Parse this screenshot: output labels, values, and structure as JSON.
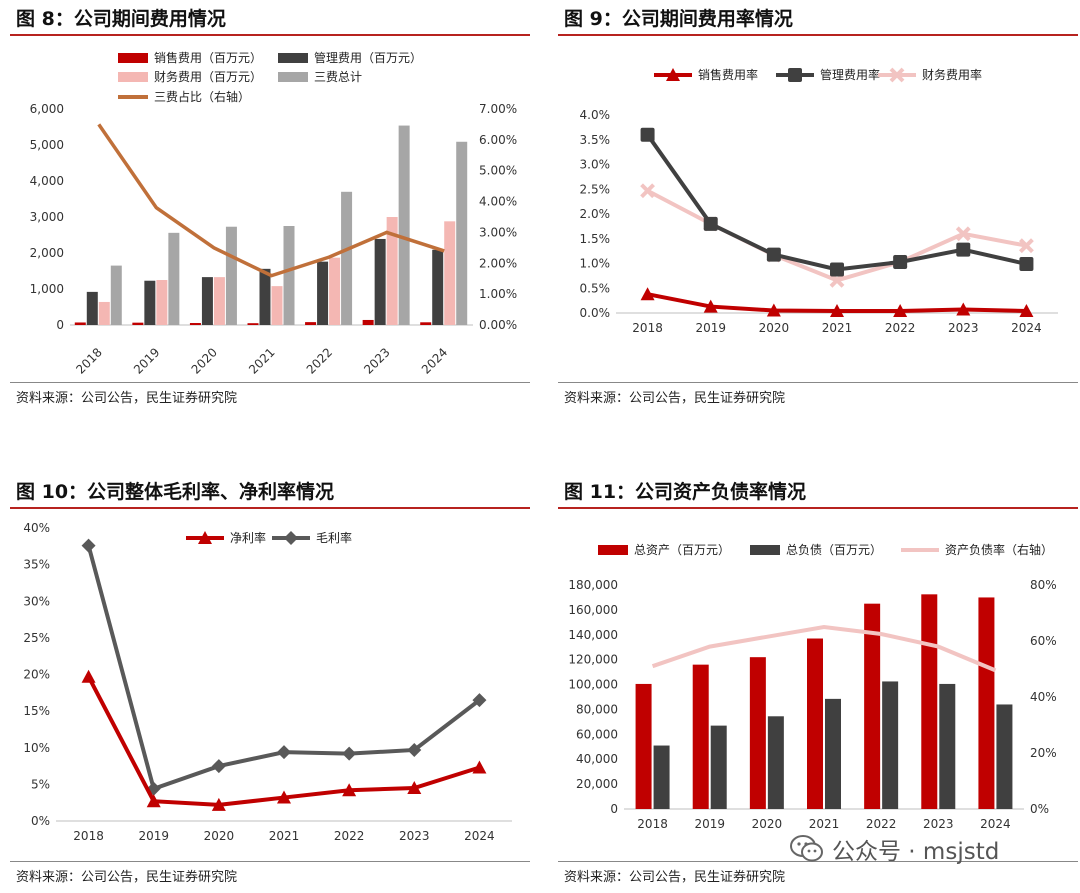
{
  "source_text": "资料来源：公司公告，民生证券研究院",
  "watermark": {
    "text": "公众号 · msjstd",
    "icon": "wechat-icon"
  },
  "colors": {
    "dark_red": "#c00000",
    "dark_grey": "#404040",
    "pink": "#f4b7b3",
    "light_grey": "#a6a6a6",
    "orange": "#c0703a",
    "light_pink": "#f2c4c2",
    "gray_line": "#595959",
    "title_rule": "#b7231f"
  },
  "chart_data": [
    {
      "id": "fig8",
      "title": "图 8：公司期间费用情况",
      "type": "bar",
      "categories": [
        "2018",
        "2019",
        "2020",
        "2021",
        "2022",
        "2023",
        "2024"
      ],
      "legend_position": "top",
      "series": [
        {
          "name": "销售费用（百万元）",
          "type": "bar",
          "axis": "left",
          "values": [
            70,
            65,
            55,
            50,
            80,
            140,
            75
          ]
        },
        {
          "name": "管理费用（百万元）",
          "type": "bar",
          "axis": "left",
          "values": [
            920,
            1230,
            1330,
            1560,
            1760,
            2390,
            2090
          ]
        },
        {
          "name": "财务费用（百万元）",
          "type": "bar",
          "axis": "left",
          "values": [
            640,
            1250,
            1330,
            1080,
            1870,
            3000,
            2880
          ]
        },
        {
          "name": "三费总计",
          "type": "bar",
          "axis": "left",
          "values": [
            1650,
            2560,
            2730,
            2750,
            3700,
            5540,
            5090
          ]
        },
        {
          "name": "三费占比（右轴）",
          "type": "line",
          "axis": "right",
          "values": [
            6.5,
            3.8,
            2.5,
            1.6,
            2.2,
            3.0,
            2.4
          ]
        }
      ],
      "ylim": [
        0,
        6000
      ],
      "y2lim": [
        0,
        7
      ],
      "ytick_labels": [
        "0",
        "1,000",
        "2,000",
        "3,000",
        "4,000",
        "5,000",
        "6,000"
      ],
      "y2tick_labels": [
        "0.00%",
        "1.00%",
        "2.00%",
        "3.00%",
        "4.00%",
        "5.00%",
        "6.00%",
        "7.00%"
      ],
      "grid": false
    },
    {
      "id": "fig9",
      "title": "图 9：公司期间费用率情况",
      "type": "line",
      "categories": [
        "2018",
        "2019",
        "2020",
        "2021",
        "2022",
        "2023",
        "2024"
      ],
      "legend_position": "top",
      "series": [
        {
          "name": "销售费用率",
          "marker": "triangle",
          "values": [
            0.38,
            0.13,
            0.05,
            0.04,
            0.04,
            0.07,
            0.04
          ]
        },
        {
          "name": "管理费用率",
          "marker": "square",
          "values": [
            3.6,
            1.8,
            1.18,
            0.88,
            1.03,
            1.28,
            0.99
          ]
        },
        {
          "name": "财务费用率",
          "marker": "cross",
          "values": [
            2.47,
            1.8,
            1.17,
            0.66,
            1.03,
            1.6,
            1.36
          ]
        }
      ],
      "ylim": [
        0,
        4
      ],
      "ytick_labels": [
        "0.0%",
        "0.5%",
        "1.0%",
        "1.5%",
        "2.0%",
        "2.5%",
        "3.0%",
        "3.5%",
        "4.0%"
      ],
      "grid": false
    },
    {
      "id": "fig10",
      "title": "图 10：公司整体毛利率、净利率情况",
      "type": "line",
      "categories": [
        "2018",
        "2019",
        "2020",
        "2021",
        "2022",
        "2023",
        "2024"
      ],
      "legend_position": "top-right",
      "series": [
        {
          "name": "净利率",
          "marker": "triangle",
          "values": [
            19.7,
            2.7,
            2.2,
            3.2,
            4.2,
            4.5,
            7.3
          ]
        },
        {
          "name": "毛利率",
          "marker": "diamond",
          "values": [
            37.6,
            4.4,
            7.5,
            9.4,
            9.2,
            9.7,
            16.5
          ]
        }
      ],
      "ylim": [
        0,
        40
      ],
      "ytick_labels": [
        "0%",
        "5%",
        "10%",
        "15%",
        "20%",
        "25%",
        "30%",
        "35%",
        "40%"
      ],
      "grid": false
    },
    {
      "id": "fig11",
      "title": "图 11：公司资产负债率情况",
      "type": "bar",
      "categories": [
        "2018",
        "2019",
        "2020",
        "2021",
        "2022",
        "2023",
        "2024"
      ],
      "legend_position": "top",
      "series": [
        {
          "name": "总资产（百万元）",
          "type": "bar",
          "axis": "left",
          "values": [
            100500,
            116000,
            122000,
            137000,
            165000,
            172500,
            170000
          ]
        },
        {
          "name": "总负债（百万元）",
          "type": "bar",
          "axis": "left",
          "values": [
            51000,
            67000,
            74500,
            88500,
            102500,
            100500,
            84000
          ]
        },
        {
          "name": "资产负债率（右轴）",
          "type": "line",
          "axis": "right",
          "values": [
            51,
            58,
            61.5,
            65,
            62.5,
            58,
            49.5
          ]
        }
      ],
      "ylim": [
        0,
        180000
      ],
      "y2lim": [
        0,
        80
      ],
      "ytick_labels": [
        "0",
        "20,000",
        "40,000",
        "60,000",
        "80,000",
        "100,000",
        "120,000",
        "140,000",
        "160,000",
        "180,000"
      ],
      "y2tick_labels": [
        "0%",
        "20%",
        "40%",
        "60%",
        "80%"
      ],
      "grid": false
    }
  ]
}
